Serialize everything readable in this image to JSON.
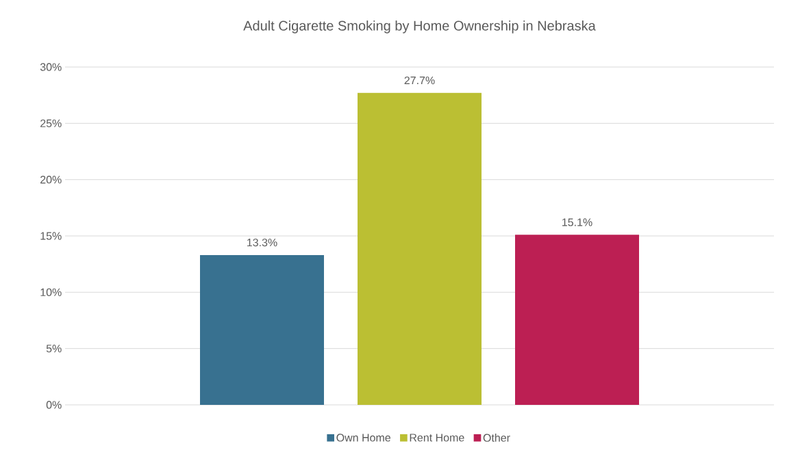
{
  "chart_data": {
    "type": "bar",
    "title": "Adult Cigarette Smoking by Home Ownership in Nebraska",
    "categories": [
      null
    ],
    "series": [
      {
        "name": "Own Home",
        "color": "#387190",
        "values": [
          13.3
        ],
        "value_labels": [
          "13.3%"
        ]
      },
      {
        "name": "Rent Home",
        "color": "#bbbf33",
        "values": [
          27.7
        ],
        "value_labels": [
          "27.7%"
        ]
      },
      {
        "name": "Other",
        "color": "#bc1f53",
        "values": [
          15.1
        ],
        "value_labels": [
          "15.1%"
        ]
      }
    ],
    "ylim": [
      0,
      30
    ],
    "yticks": [
      {
        "value": 0,
        "label": "0%"
      },
      {
        "value": 5,
        "label": "5%"
      },
      {
        "value": 10,
        "label": "10%"
      },
      {
        "value": 15,
        "label": "15%"
      },
      {
        "value": 20,
        "label": "20%"
      },
      {
        "value": 25,
        "label": "25%"
      },
      {
        "value": 30,
        "label": "30%"
      }
    ],
    "grid": "y",
    "legend": "bottom"
  }
}
